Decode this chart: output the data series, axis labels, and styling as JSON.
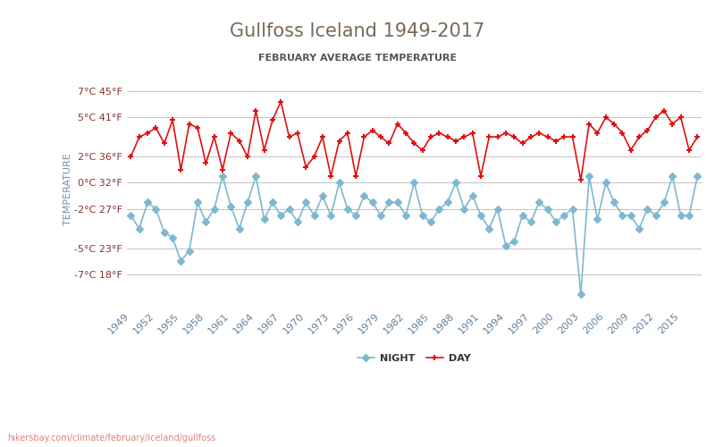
{
  "title": "Gullfoss Iceland 1949-2017",
  "subtitle": "FEBRUARY AVERAGE TEMPERATURE",
  "ylabel": "TEMPERATURE",
  "url_text": "hikersbay.com/climate/february/iceland/gullfoss",
  "years": [
    1949,
    1950,
    1951,
    1952,
    1953,
    1954,
    1955,
    1956,
    1957,
    1958,
    1959,
    1960,
    1961,
    1962,
    1963,
    1964,
    1965,
    1966,
    1967,
    1968,
    1969,
    1970,
    1971,
    1972,
    1973,
    1974,
    1975,
    1976,
    1977,
    1978,
    1979,
    1980,
    1981,
    1982,
    1983,
    1984,
    1985,
    1986,
    1987,
    1988,
    1989,
    1990,
    1991,
    1992,
    1993,
    1994,
    1995,
    1996,
    1997,
    1998,
    1999,
    2000,
    2001,
    2002,
    2003,
    2004,
    2005,
    2006,
    2007,
    2008,
    2009,
    2010,
    2011,
    2012,
    2013,
    2014,
    2015,
    2016,
    2017
  ],
  "day_temps": [
    2.0,
    3.5,
    3.8,
    4.2,
    3.0,
    4.8,
    1.0,
    4.5,
    4.2,
    1.5,
    3.5,
    1.0,
    3.8,
    3.2,
    2.0,
    5.5,
    2.5,
    4.8,
    6.2,
    3.5,
    3.8,
    1.2,
    2.0,
    3.5,
    0.5,
    3.2,
    3.8,
    0.5,
    3.5,
    4.0,
    3.5,
    3.0,
    4.5,
    3.8,
    3.0,
    2.5,
    3.5,
    3.8,
    3.5,
    3.2,
    3.5,
    3.8,
    0.5,
    3.5,
    3.5,
    3.8,
    3.5,
    3.0,
    3.5,
    3.8,
    3.5,
    3.2,
    3.5,
    3.5,
    0.2,
    4.5,
    3.8,
    5.0,
    4.5,
    3.8,
    2.5,
    3.5,
    4.0,
    5.0,
    5.5,
    4.5,
    5.0,
    2.5,
    3.5
  ],
  "night_temps": [
    -2.5,
    -3.5,
    -1.5,
    -2.0,
    -3.8,
    -4.2,
    -6.0,
    -5.2,
    -1.5,
    -3.0,
    -2.0,
    0.5,
    -1.8,
    -3.5,
    -1.5,
    0.5,
    -2.8,
    -1.5,
    -2.5,
    -2.0,
    -3.0,
    -1.5,
    -2.5,
    -1.0,
    -2.5,
    0.0,
    -2.0,
    -2.5,
    -1.0,
    -1.5,
    -2.5,
    -1.5,
    -1.5,
    -2.5,
    0.0,
    -2.5,
    -3.0,
    -2.0,
    -1.5,
    0.0,
    -2.0,
    -1.0,
    -2.5,
    -3.5,
    -2.0,
    -4.8,
    -4.5,
    -2.5,
    -3.0,
    -1.5,
    -2.0,
    -3.0,
    -2.5,
    -2.0,
    -8.5,
    0.5,
    -2.8,
    0.0,
    -1.5,
    -2.5,
    -2.5,
    -3.5,
    -2.0,
    -2.5,
    -1.5,
    0.5,
    -2.5,
    -2.5,
    0.5
  ],
  "day_color": "#e01010",
  "night_color": "#7eb8d0",
  "day_marker": "+",
  "night_marker": "D",
  "yticks_c": [
    7,
    5,
    2,
    0,
    -2,
    -5,
    -7
  ],
  "yticks_f": [
    45,
    41,
    36,
    32,
    27,
    23,
    18
  ],
  "xtick_step": 3,
  "title_color": "#7a6a5a",
  "subtitle_color": "#555555",
  "axis_color": "#aaaaaa",
  "tick_color": "#8a3030",
  "night_marker_size": 4,
  "day_marker_size": 5,
  "background_color": "#ffffff",
  "url_color": "#e08080",
  "legend_night_color": "#7eb8d0",
  "legend_day_color": "#e01010"
}
